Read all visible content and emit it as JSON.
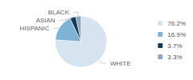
{
  "chart_data": {
    "type": "pie",
    "categories": [
      "WHITE",
      "HISPANIC",
      "ASIAN",
      "BLACK"
    ],
    "values": [
      76.2,
      16.9,
      3.7,
      3.3
    ],
    "value_labels": [
      "76.2%",
      "16.9%",
      "3.7%",
      "3.3%"
    ],
    "colors": [
      "#d6e4f0",
      "#7fb3d3",
      "#1a3a5c",
      "#8da9bb"
    ],
    "legend": "right"
  }
}
